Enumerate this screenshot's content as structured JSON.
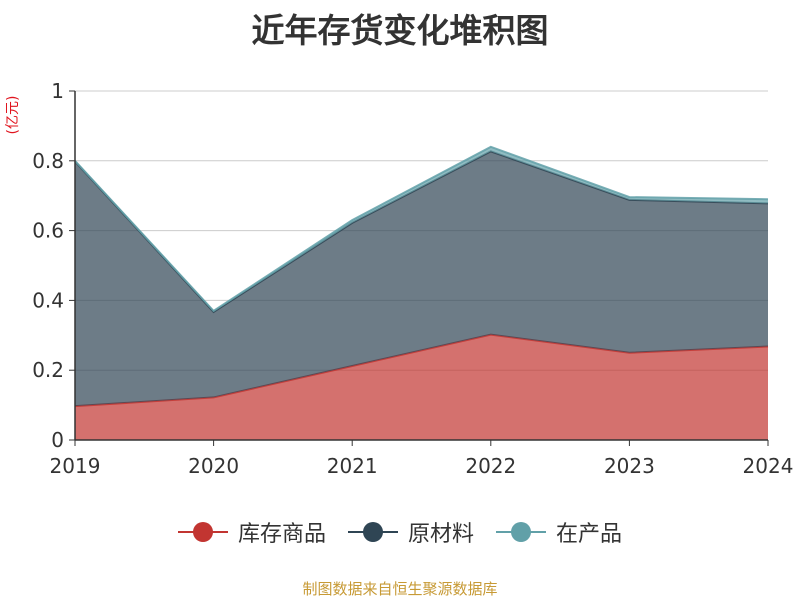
{
  "title": "近年存货变化堆积图",
  "unit": "(亿元)",
  "source": "制图数据来自恒生聚源数据库",
  "chart_data": {
    "type": "area",
    "stacked": true,
    "x": [
      "2019",
      "2020",
      "2021",
      "2022",
      "2023",
      "2024"
    ],
    "ylim": [
      0,
      1
    ],
    "yticks": [
      0,
      0.2,
      0.4,
      0.6,
      0.8,
      1
    ],
    "ytick_labels": [
      "0",
      "0.2",
      "0.4",
      "0.6",
      "0.8",
      "1"
    ],
    "grid": true,
    "legend_position": "bottom",
    "series": [
      {
        "name": "库存商品",
        "color": "#c23531",
        "values": [
          0.097,
          0.122,
          0.212,
          0.302,
          0.25,
          0.268
        ]
      },
      {
        "name": "原材料",
        "color": "#2f4554",
        "values": [
          0.701,
          0.245,
          0.41,
          0.525,
          0.438,
          0.41
        ]
      },
      {
        "name": "在产品",
        "color": "#61a0a8",
        "values": [
          0.002,
          0.003,
          0.008,
          0.013,
          0.008,
          0.012
        ]
      }
    ]
  }
}
